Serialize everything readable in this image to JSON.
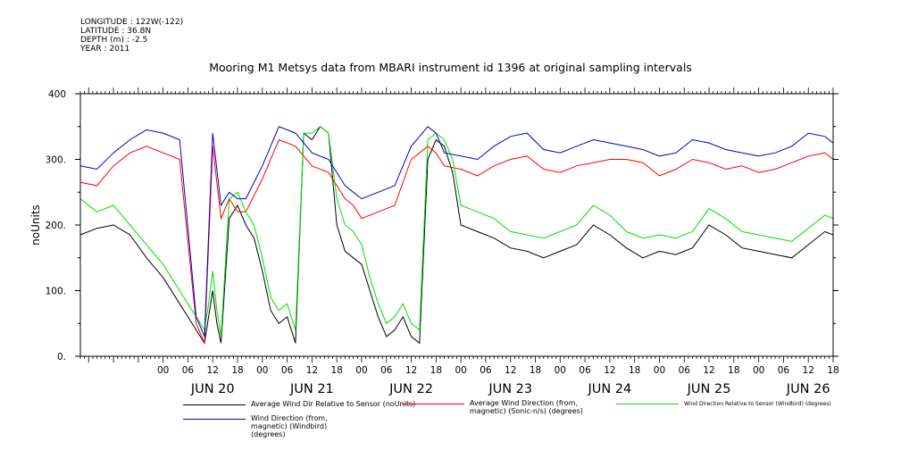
{
  "meta": {
    "lines": [
      "LONGITUDE : 122W(-122)",
      "LATITUDE : 36.8N",
      "DEPTH (m) : -2.5",
      "YEAR : 2011"
    ]
  },
  "chart_data": {
    "type": "line",
    "title": "Mooring M1 Metsys data from MBARI instrument id 1396 at original sampling intervals",
    "ylabel": "noUnits",
    "xlabel": "",
    "ylim": [
      0,
      400
    ],
    "yticks": [
      0,
      100,
      200,
      300,
      400
    ],
    "ytick_labels": [
      "0.",
      "100.",
      "200.",
      "300.",
      "400"
    ],
    "xlim_hours": [
      -20,
      162
    ],
    "hour_ticks": [
      "00",
      "06",
      "12",
      "18",
      "00",
      "06",
      "12",
      "18",
      "00",
      "06",
      "12",
      "18",
      "00",
      "06",
      "12",
      "18",
      "00",
      "06",
      "12",
      "18",
      "00",
      "06",
      "12",
      "18",
      "00",
      "06",
      "12",
      "18"
    ],
    "day_labels": [
      "JUN 20",
      "JUN 21",
      "JUN 22",
      "JUN 23",
      "JUN 24",
      "JUN 25",
      "JUN 26"
    ],
    "series": [
      {
        "name": "Average Wind Dir Relative to Sensor (noUnits)",
        "color": "#000000",
        "x": [
          -20,
          -16,
          -12,
          -8,
          -4,
          0,
          4,
          8,
          10,
          11,
          12,
          13,
          14,
          16,
          18,
          20,
          22,
          24,
          26,
          28,
          30,
          32,
          34,
          36,
          38,
          40,
          42,
          44,
          46,
          48,
          50,
          52,
          54,
          56,
          58,
          60,
          62,
          64,
          66,
          68,
          70,
          72,
          76,
          80,
          84,
          88,
          92,
          96,
          100,
          104,
          108,
          112,
          116,
          120,
          124,
          128,
          132,
          136,
          140,
          144,
          148,
          152,
          156,
          160,
          162
        ],
        "y": [
          185,
          195,
          200,
          185,
          150,
          120,
          80,
          40,
          20,
          60,
          100,
          50,
          20,
          210,
          230,
          200,
          180,
          130,
          70,
          50,
          60,
          20,
          340,
          330,
          350,
          340,
          200,
          160,
          150,
          140,
          100,
          60,
          30,
          40,
          60,
          30,
          20,
          300,
          330,
          320,
          280,
          200,
          190,
          180,
          165,
          160,
          150,
          160,
          170,
          200,
          185,
          165,
          150,
          160,
          155,
          165,
          200,
          185,
          165,
          160,
          155,
          150,
          170,
          190,
          185
        ]
      },
      {
        "name": "Average Wind Direction (from, magnetic) (Sonic-n/s) (degrees)",
        "color": "#ff0000",
        "x": [
          -20,
          -16,
          -12,
          -8,
          -4,
          0,
          4,
          8,
          10,
          12,
          14,
          16,
          18,
          20,
          24,
          28,
          32,
          36,
          40,
          44,
          46,
          48,
          52,
          56,
          60,
          64,
          66,
          68,
          72,
          76,
          80,
          84,
          88,
          92,
          96,
          100,
          104,
          108,
          112,
          116,
          120,
          124,
          128,
          132,
          136,
          140,
          144,
          148,
          152,
          156,
          160,
          162
        ],
        "y": [
          265,
          260,
          290,
          310,
          320,
          310,
          300,
          50,
          20,
          320,
          210,
          240,
          220,
          220,
          270,
          330,
          320,
          290,
          280,
          240,
          230,
          210,
          220,
          230,
          300,
          320,
          310,
          290,
          285,
          275,
          290,
          300,
          305,
          285,
          280,
          290,
          295,
          300,
          300,
          295,
          275,
          285,
          300,
          295,
          285,
          290,
          280,
          285,
          295,
          305,
          310,
          300
        ]
      },
      {
        "name": "Wind Direction Relative to Sensor (Windbird) (degrees)",
        "color": "#00e000",
        "x": [
          -20,
          -16,
          -12,
          -8,
          -4,
          0,
          4,
          8,
          10,
          11,
          12,
          13,
          14,
          16,
          18,
          20,
          22,
          24,
          26,
          28,
          30,
          32,
          34,
          36,
          38,
          40,
          42,
          44,
          46,
          48,
          50,
          52,
          54,
          56,
          58,
          60,
          62,
          64,
          66,
          68,
          70,
          72,
          76,
          80,
          84,
          88,
          92,
          96,
          100,
          104,
          108,
          112,
          116,
          120,
          124,
          128,
          132,
          136,
          140,
          144,
          148,
          152,
          156,
          160,
          162
        ],
        "y": [
          240,
          220,
          230,
          200,
          170,
          140,
          100,
          60,
          40,
          80,
          130,
          70,
          30,
          240,
          250,
          220,
          200,
          150,
          90,
          70,
          80,
          40,
          340,
          340,
          350,
          340,
          240,
          200,
          190,
          170,
          120,
          80,
          50,
          60,
          80,
          50,
          40,
          330,
          340,
          330,
          300,
          230,
          220,
          210,
          190,
          185,
          180,
          190,
          200,
          230,
          215,
          190,
          180,
          185,
          180,
          190,
          225,
          210,
          190,
          185,
          180,
          175,
          195,
          215,
          210
        ]
      },
      {
        "name": "Wind Direction (from, magnetic) (Windbird) (degrees)",
        "color": "#0000cc",
        "x": [
          -20,
          -16,
          -12,
          -8,
          -4,
          0,
          4,
          8,
          10,
          12,
          14,
          16,
          18,
          20,
          24,
          28,
          32,
          36,
          40,
          44,
          46,
          48,
          52,
          56,
          60,
          64,
          66,
          68,
          72,
          76,
          80,
          84,
          88,
          92,
          96,
          100,
          104,
          108,
          112,
          116,
          120,
          124,
          128,
          132,
          136,
          140,
          144,
          148,
          152,
          156,
          160,
          162
        ],
        "y": [
          290,
          285,
          310,
          330,
          345,
          340,
          330,
          60,
          30,
          340,
          230,
          250,
          240,
          240,
          290,
          350,
          340,
          310,
          300,
          260,
          250,
          240,
          250,
          260,
          320,
          350,
          340,
          310,
          305,
          300,
          320,
          335,
          340,
          315,
          310,
          320,
          330,
          325,
          320,
          315,
          305,
          310,
          330,
          325,
          315,
          310,
          305,
          310,
          320,
          340,
          335,
          325
        ]
      }
    ],
    "legend_placement": "bottom"
  },
  "legend": [
    {
      "text": "Average Wind Dir Relative to Sensor (noUnits)",
      "color": "#000000"
    },
    {
      "text": "Average Wind Direction (from, magnetic) (Sonic-n/s) (degrees)",
      "color": "#ff0000"
    },
    {
      "text": "Wind Direction Relative to Sensor (Windbird) (degrees)",
      "color": "#00e000"
    },
    {
      "text": "Wind Direction (from, magnetic) (Windbird) (degrees)",
      "color": "#0000cc"
    }
  ]
}
